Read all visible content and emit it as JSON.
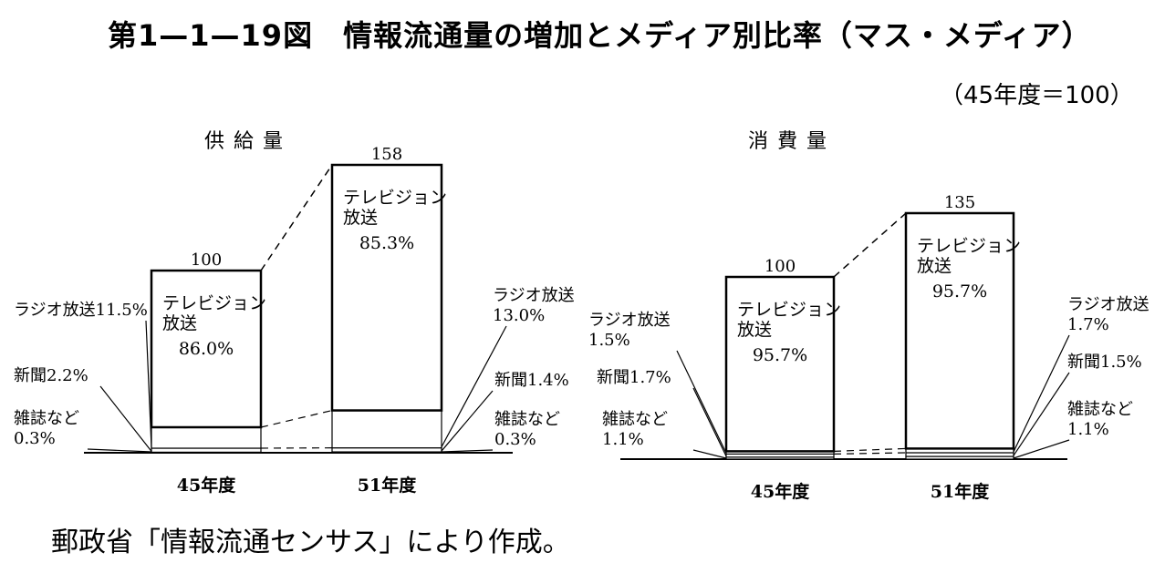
{
  "title": "第1—1—19図　情報流通量の増加とメディア別比率（マス・メディア）",
  "unit_note": "（45年度＝100）",
  "source": "郵政省「情報流通センサス」により作成。",
  "chart_data": [
    {
      "type": "bar",
      "stacked": true,
      "title": "供給量",
      "categories": [
        "45年度",
        "51年度"
      ],
      "totals": [
        100,
        158
      ],
      "ylim": [
        0,
        170
      ],
      "series": [
        {
          "name": "テレビジョン放送",
          "share_percent": [
            86.0,
            85.3
          ],
          "labels": [
            "テレビジョン\n放送\n86.0%",
            "テレビジョン\n放送\n85.3%"
          ]
        },
        {
          "name": "ラジオ放送",
          "share_percent": [
            11.5,
            13.0
          ],
          "labels": [
            "ラジオ放送11.5%",
            "ラジオ放送\n13.0%"
          ]
        },
        {
          "name": "新聞",
          "share_percent": [
            2.2,
            1.4
          ],
          "labels": [
            "新聞2.2%",
            "新聞1.4%"
          ]
        },
        {
          "name": "雑誌など",
          "share_percent": [
            0.3,
            0.3
          ],
          "labels": [
            "雑誌など\n0.3%",
            "雑誌など\n0.3%"
          ]
        }
      ]
    },
    {
      "type": "bar",
      "stacked": true,
      "title": "消費量",
      "categories": [
        "45年度",
        "51年度"
      ],
      "totals": [
        100,
        135
      ],
      "ylim": [
        0,
        170
      ],
      "series": [
        {
          "name": "テレビジョン放送",
          "share_percent": [
            95.7,
            95.7
          ],
          "labels": [
            "テレビジョン\n放送\n95.7%",
            "テレビジョン\n放送\n95.7%"
          ]
        },
        {
          "name": "ラジオ放送",
          "share_percent": [
            1.5,
            1.7
          ],
          "labels": [
            "ラジオ放送\n1.5%",
            "ラジオ放送\n1.7%"
          ]
        },
        {
          "name": "新聞",
          "share_percent": [
            1.7,
            1.5
          ],
          "labels": [
            "新聞1.7%",
            "新聞1.5%"
          ]
        },
        {
          "name": "雑誌など",
          "share_percent": [
            1.1,
            1.1
          ],
          "labels": [
            "雑誌など\n1.1%",
            "雑誌など\n1.1%"
          ]
        }
      ]
    }
  ]
}
